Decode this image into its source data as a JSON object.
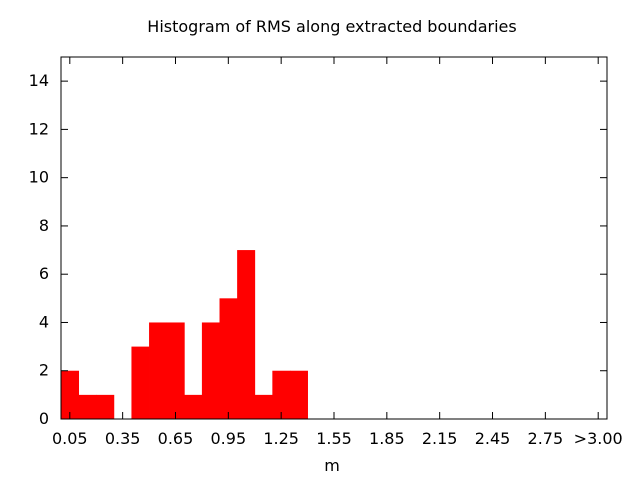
{
  "chart_data": {
    "type": "bar",
    "title": "Histogram of RMS along extracted boundaries",
    "xlabel": "m",
    "ylabel": "",
    "bin_width": 0.1,
    "bin_starts": [
      0.0,
      0.1,
      0.2,
      0.3,
      0.4,
      0.5,
      0.6,
      0.7,
      0.8,
      0.9,
      1.0,
      1.1,
      1.2,
      1.3
    ],
    "values": [
      2,
      1,
      1,
      0,
      3,
      4,
      4,
      1,
      4,
      5,
      7,
      1,
      2,
      2
    ],
    "xlim": [
      0.0,
      3.1
    ],
    "ylim": [
      0,
      15
    ],
    "xticks": [
      {
        "value": 0.05,
        "label": "0.05"
      },
      {
        "value": 0.35,
        "label": "0.35"
      },
      {
        "value": 0.65,
        "label": "0.65"
      },
      {
        "value": 0.95,
        "label": "0.95"
      },
      {
        "value": 1.25,
        "label": "1.25"
      },
      {
        "value": 1.55,
        "label": "1.55"
      },
      {
        "value": 1.85,
        "label": "1.85"
      },
      {
        "value": 2.15,
        "label": "2.15"
      },
      {
        "value": 2.45,
        "label": "2.45"
      },
      {
        "value": 2.75,
        "label": "2.75"
      },
      {
        "value": 3.05,
        "label": ">3.00"
      }
    ],
    "yticks": [
      0,
      2,
      4,
      6,
      8,
      10,
      12,
      14
    ],
    "bar_color": "#ff0000",
    "grid": false,
    "legend": "none"
  }
}
